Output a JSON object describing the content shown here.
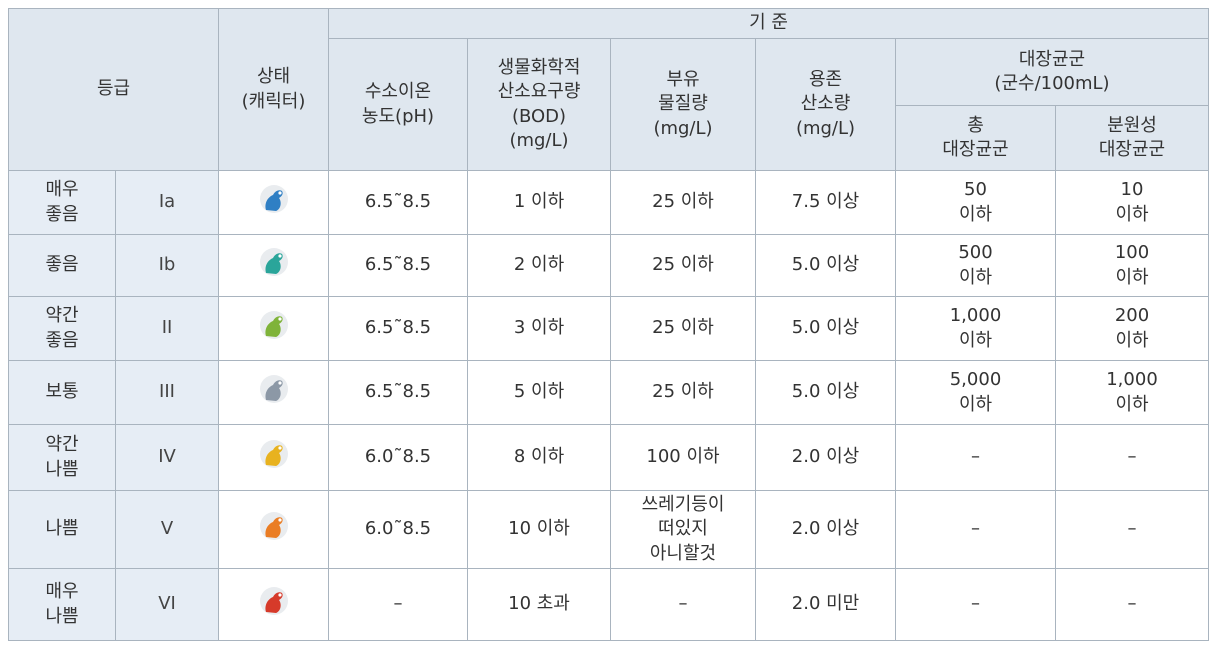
{
  "header": {
    "grade": "등급",
    "status": "상태\n(캐릭터)",
    "criteria": "기 준",
    "ph": "수소이온\n농도(pH)",
    "bod": "생물화학적\n산소요구량\n(BOD)\n(mg/L)",
    "ss": "부유\n물질량\n(mg/L)",
    "do": "용존\n산소량\n(mg/L)",
    "coliform": "대장균군\n(군수/100mL)",
    "total": "총\n대장균군",
    "fecal": "분원성\n대장균군"
  },
  "rows": [
    [
      "매우\n좋음",
      "Ia",
      "6.5˜8.5",
      "1 이하",
      "25 이하",
      "7.5 이상",
      "50\n이하",
      "10\n이하"
    ],
    [
      "좋음",
      "Ib",
      "6.5˜8.5",
      "2 이하",
      "25 이하",
      "5.0 이상",
      "500\n이하",
      "100\n이하"
    ],
    [
      "약간\n좋음",
      "II",
      "6.5˜8.5",
      "3 이하",
      "25 이하",
      "5.0 이상",
      "1,000\n이하",
      "200\n이하"
    ],
    [
      "보통",
      "III",
      "6.5˜8.5",
      "5 이하",
      "25 이하",
      "5.0 이상",
      "5,000\n이하",
      "1,000\n이하"
    ],
    [
      "약간\n나쁨",
      "IV",
      "6.0˜8.5",
      "8 이하",
      "100 이하",
      "2.0 이상",
      "–",
      "–"
    ],
    [
      "나쁨",
      "V",
      "6.0˜8.5",
      "10 이하",
      "쓰레기등이\n떠있지\n아니할것",
      "2.0 이상",
      "–",
      "–"
    ],
    [
      "매우\n나쁨",
      "VI",
      "–",
      "10 초과",
      "–",
      "2.0 미만",
      "–",
      "–"
    ]
  ]
}
